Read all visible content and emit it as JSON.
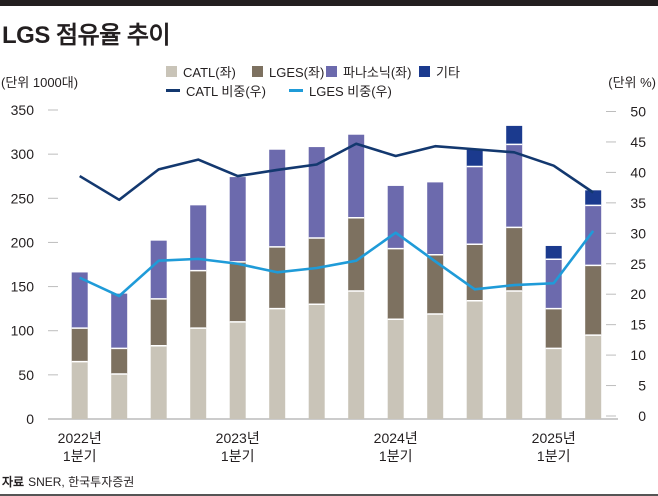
{
  "header": {
    "title": "LGS 점유율 추이",
    "unit_left": "(단위 1000대)",
    "unit_right": "(단위 %)"
  },
  "legend": {
    "bars": [
      {
        "label": "CATL(좌)",
        "color": "#c9c4b8"
      },
      {
        "label": "LGES(좌)",
        "color": "#7d7160"
      },
      {
        "label": "파나소닉(좌)",
        "color": "#6c6aad"
      },
      {
        "label": "기타",
        "color": "#1b3a8e"
      }
    ],
    "lines": [
      {
        "label": "CATL 비중(우)",
        "color": "#13386f"
      },
      {
        "label": "LGES 비중(우)",
        "color": "#1f9bd8"
      }
    ]
  },
  "source": {
    "prefix": "자료",
    "text": "SNER, 한국투자증권"
  },
  "chart_data": {
    "type": "bar",
    "title": "LGS 점유율 추이",
    "stacked": true,
    "categories": [
      "2022 1Q",
      "2022 2Q",
      "2022 3Q",
      "2022 4Q",
      "2023 1Q",
      "2023 2Q",
      "2023 3Q",
      "2023 4Q",
      "2024 1Q",
      "2024 2Q",
      "2024 3Q",
      "2024 4Q",
      "2025 1Q",
      "2025 2Q"
    ],
    "x_tick_labels": [
      {
        "index": 0,
        "line1": "2022년",
        "line2": "1분기"
      },
      {
        "index": 4,
        "line1": "2023년",
        "line2": "1분기"
      },
      {
        "index": 8,
        "line1": "2024년",
        "line2": "1분기"
      },
      {
        "index": 12,
        "line1": "2025년",
        "line2": "1분기"
      }
    ],
    "series": [
      {
        "name": "CATL(좌)",
        "axis": "left",
        "kind": "bar",
        "color": "#c9c4b8",
        "values": [
          65,
          51,
          83,
          103,
          110,
          125,
          130,
          145,
          113,
          119,
          134,
          145,
          80,
          95
        ]
      },
      {
        "name": "LGES(좌)",
        "axis": "left",
        "kind": "bar",
        "color": "#7d7160",
        "values": [
          38,
          29,
          53,
          65,
          68,
          70,
          75,
          83,
          80,
          67,
          64,
          72,
          45,
          79
        ]
      },
      {
        "name": "파나소닉(좌)",
        "axis": "left",
        "kind": "bar",
        "color": "#6c6aad",
        "values": [
          63,
          62,
          66,
          74,
          96,
          110,
          103,
          94,
          71,
          82,
          88,
          94,
          56,
          68
        ]
      },
      {
        "name": "기타",
        "axis": "left",
        "kind": "bar",
        "color": "#1b3a8e",
        "values": [
          0,
          0,
          0,
          0,
          0,
          0,
          0,
          0,
          0,
          0,
          19,
          21,
          15,
          17
        ]
      },
      {
        "name": "CATL 비중(우)",
        "axis": "right",
        "kind": "line",
        "color": "#13386f",
        "values": [
          39.4,
          35.5,
          40.5,
          42.1,
          39.4,
          40.4,
          41.3,
          44.7,
          42.7,
          44.3,
          43.8,
          43.3,
          41.1,
          36.7
        ]
      },
      {
        "name": "LGES 비중(우)",
        "axis": "right",
        "kind": "line",
        "color": "#1f9bd8",
        "values": [
          22.7,
          19.7,
          25.5,
          25.8,
          25.0,
          23.6,
          24.3,
          25.5,
          30.1,
          25.4,
          20.8,
          21.5,
          21.8,
          30.4
        ]
      }
    ],
    "y_left": {
      "label": "(단위 1000대)",
      "range": [
        0,
        350
      ],
      "ticks": [
        0,
        50,
        100,
        150,
        200,
        250,
        300,
        350
      ]
    },
    "y_right": {
      "label": "(단위 %)",
      "range": [
        0,
        50
      ],
      "ticks": [
        0,
        5,
        10,
        15,
        20,
        25,
        30,
        35,
        40,
        45,
        50
      ]
    },
    "grid": false,
    "legend_position": "top-center"
  }
}
